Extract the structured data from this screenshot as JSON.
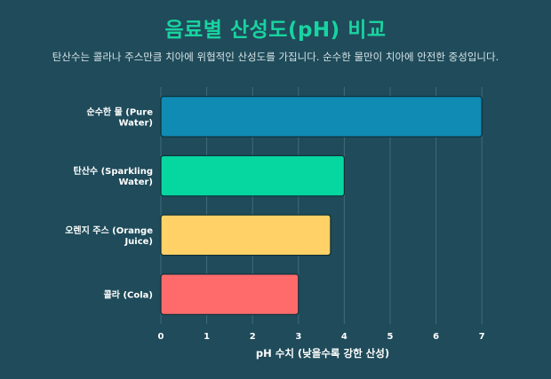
{
  "title": "음료별 산성도(pH) 비교",
  "subtitle": "탄산수는 콜라나 주스만큼 치아에 위협적인 산성도를 가집니다. 순수한 물만이 치아에 안전한 중성입니다.",
  "colors": {
    "background": "#1f4b5a",
    "title": "#19d3a0",
    "grid": "#3f6b79",
    "bar_border": "#0d2f38"
  },
  "chart_data": {
    "type": "bar",
    "orientation": "horizontal",
    "categories": [
      [
        "순수한 물 (Pure",
        "Water)"
      ],
      [
        "탄산수 (Sparkling",
        "Water)"
      ],
      [
        "오렌지 주스 (Orange",
        "Juice)"
      ],
      [
        "콜라 (Cola)"
      ]
    ],
    "values": [
      7.0,
      4.0,
      3.7,
      3.0
    ],
    "bar_colors": [
      "#0f8bb4",
      "#06d6a0",
      "#ffd166",
      "#ff6b6b"
    ],
    "xlabel": "pH 수치 (낮을수록 강한 산성)",
    "ylabel": "",
    "xlim": [
      0,
      7.5
    ],
    "xticks": [
      0,
      1,
      2,
      3,
      4,
      5,
      6,
      7
    ],
    "grid": true,
    "legend": "none"
  }
}
